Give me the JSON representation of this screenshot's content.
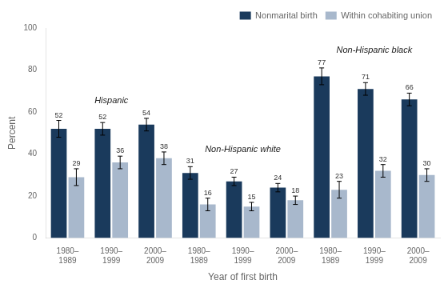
{
  "chart_data": {
    "type": "bar",
    "xlabel": "Year of first birth",
    "ylabel": "Percent",
    "categories": [
      "1980–1989",
      "1990–1999",
      "2000–2009",
      "1980–1989",
      "1990–1999",
      "2000–2009",
      "1980–1989",
      "1990–1999",
      "2000–2009"
    ],
    "series": [
      {
        "name": "Nonmarital birth",
        "color": "#1a3a5c",
        "values": [
          52,
          52,
          54,
          31,
          27,
          24,
          77,
          71,
          66
        ],
        "errors": [
          4,
          3,
          3,
          3,
          2,
          2,
          4,
          3,
          3
        ]
      },
      {
        "name": "Within cohabiting union",
        "color": "#a8b8cc",
        "values": [
          29,
          36,
          38,
          16,
          15,
          18,
          23,
          32,
          30
        ],
        "errors": [
          4,
          3,
          3,
          3,
          2,
          2,
          4,
          3,
          3
        ]
      }
    ],
    "annotations": [
      "Hispanic",
      "Non-Hispanic white",
      "Non-Hispanic black"
    ],
    "ylim": [
      0,
      100
    ],
    "yticks": [
      0,
      20,
      40,
      60,
      80,
      100
    ],
    "grid": false,
    "legend": "upper right",
    "data_labels": true
  }
}
